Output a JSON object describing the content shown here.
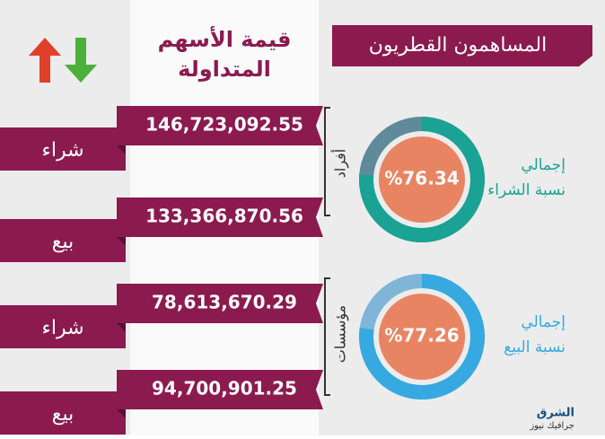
{
  "header": {
    "title_lines": [
      "قيمة الأسهم",
      "المتداولة"
    ],
    "banner": "المساهمون القطريون"
  },
  "rows": [
    {
      "label": "شراء",
      "value": "146,723,092.55"
    },
    {
      "label": "بيع",
      "value": "133,366,870.56"
    },
    {
      "label": "شراء",
      "value": "78,613,670.29"
    },
    {
      "label": "بيع",
      "value": "94,700,901.25"
    }
  ],
  "groups": [
    "أفراد",
    "مؤسسات"
  ],
  "donuts": [
    {
      "value": 76.34,
      "value_label": "%76.34",
      "title_lines": [
        "إجمالي",
        "نسبة الشراء"
      ],
      "color": "#1aa394",
      "rest_color": "#5f8a9a"
    },
    {
      "value": 77.26,
      "value_label": "%77.26",
      "title_lines": [
        "إجمالي",
        "نسبة البيع"
      ],
      "color": "#35a9e0",
      "rest_color": "#7fb6d8"
    }
  ],
  "logo": [
    "الشرق",
    "جرافيك نيوز"
  ]
}
